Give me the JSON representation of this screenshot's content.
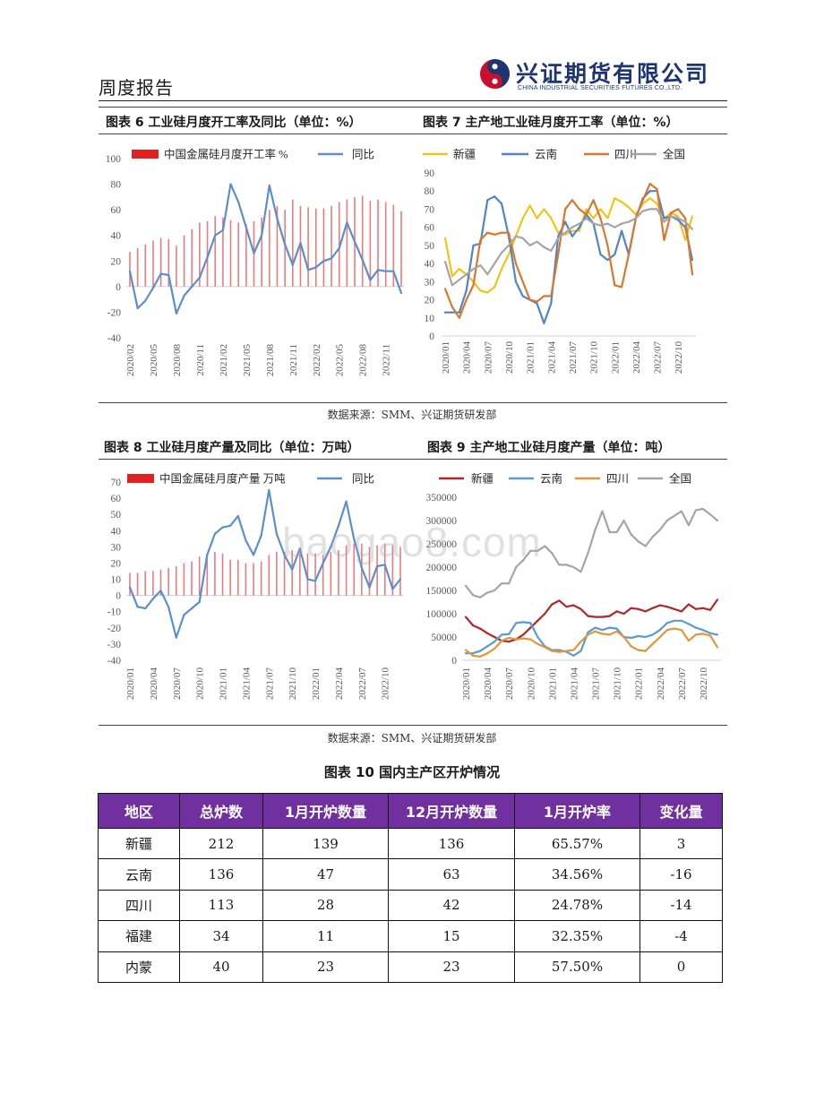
{
  "header": {
    "report_title": "周度报告",
    "company_cn": "兴证期货有限公司",
    "company_en": "CHINA INDUSTRIAL SECURITIES FUTURES CO.,LTD."
  },
  "source_note": "数据来源：SMM、兴证期货研发部",
  "watermark": "baogao8.com",
  "chart_data": [
    {
      "type": "bar",
      "title": "图表 6 工业硅月度开工率及同比（单位：%）",
      "ylim": [
        -40,
        100
      ],
      "y_ticks": [
        100,
        80,
        60,
        40,
        20,
        0,
        -20,
        -40
      ],
      "x": [
        "2020/02",
        "2020/03",
        "2020/04",
        "2020/05",
        "2020/06",
        "2020/07",
        "2020/08",
        "2020/09",
        "2020/10",
        "2020/11",
        "2020/12",
        "2021/01",
        "2021/02",
        "2021/03",
        "2021/04",
        "2021/05",
        "2021/06",
        "2021/07",
        "2021/08",
        "2021/09",
        "2021/10",
        "2021/11",
        "2021/12",
        "2022/01",
        "2022/02",
        "2022/03",
        "2022/04",
        "2022/05",
        "2022/06",
        "2022/07",
        "2022/08",
        "2022/09",
        "2022/10",
        "2022/11",
        "2022/12",
        "2023/01"
      ],
      "x_tick_labels": [
        "2020/02",
        "2020/05",
        "2020/08",
        "2020/11",
        "2021/02",
        "2021/05",
        "2021/08",
        "2021/11",
        "2022/02",
        "2022/05",
        "2022/08",
        "2022/11"
      ],
      "series": [
        {
          "name": "中国金属硅月度开工率 %",
          "kind": "bar",
          "color": "#E87C7C",
          "legend_color": "#E32020",
          "values": [
            27,
            30,
            33,
            36,
            38,
            37,
            32,
            40,
            45,
            50,
            51,
            55,
            54,
            52,
            50,
            49,
            51,
            54,
            60,
            63,
            60,
            68,
            63,
            62,
            61,
            61,
            63,
            66,
            68,
            70,
            71,
            67,
            68,
            66,
            64,
            59
          ]
        },
        {
          "name": "同比",
          "kind": "line",
          "color": "#5B8FCB",
          "values": [
            12,
            -17,
            -11,
            -1,
            10,
            9,
            -21,
            -7,
            0,
            7,
            23,
            40,
            44,
            80,
            66,
            46,
            26,
            40,
            79,
            53,
            33,
            17,
            34,
            13,
            15,
            20,
            22,
            30,
            50,
            35,
            21,
            5,
            13,
            12,
            12,
            -5
          ]
        }
      ]
    },
    {
      "type": "line",
      "title": "图表 7 主产地工业硅月度开工率（单位：%）",
      "ylim": [
        0,
        90
      ],
      "y_ticks": [
        90,
        80,
        70,
        60,
        50,
        40,
        30,
        20,
        10,
        0
      ],
      "x": [
        "2020/01",
        "2020/02",
        "2020/03",
        "2020/04",
        "2020/05",
        "2020/06",
        "2020/07",
        "2020/08",
        "2020/09",
        "2020/10",
        "2020/11",
        "2020/12",
        "2021/01",
        "2021/02",
        "2021/03",
        "2021/04",
        "2021/05",
        "2021/06",
        "2021/07",
        "2021/08",
        "2021/09",
        "2021/10",
        "2021/11",
        "2021/12",
        "2022/01",
        "2022/02",
        "2022/03",
        "2022/04",
        "2022/05",
        "2022/06",
        "2022/07",
        "2022/08",
        "2022/09",
        "2022/10",
        "2022/11",
        "2022/12"
      ],
      "x_tick_labels": [
        "2020/01",
        "2020/04",
        "2020/07",
        "2020/10",
        "2021/01",
        "2021/04",
        "2021/07",
        "2021/10",
        "2022/01",
        "2022/04",
        "2022/07",
        "2022/10"
      ],
      "series": [
        {
          "name": "新疆",
          "kind": "line",
          "color": "#F0C419",
          "values": [
            54,
            33,
            37,
            34,
            30,
            25,
            24,
            27,
            37,
            45,
            55,
            65,
            72,
            65,
            70,
            65,
            57,
            56,
            58,
            58,
            70,
            65,
            70,
            65,
            76,
            74,
            71,
            67,
            73,
            76,
            73,
            65,
            68,
            66,
            53,
            66
          ]
        },
        {
          "name": "云南",
          "kind": "line",
          "color": "#4F86C6",
          "values": [
            13,
            13,
            13,
            25,
            50,
            51,
            75,
            77,
            73,
            55,
            30,
            22,
            20,
            18,
            7,
            18,
            55,
            63,
            55,
            60,
            67,
            62,
            45,
            42,
            45,
            58,
            45,
            65,
            76,
            80,
            80,
            65,
            66,
            64,
            60,
            42
          ]
        },
        {
          "name": "四川",
          "kind": "line",
          "color": "#D9782D",
          "values": [
            26,
            16,
            10,
            20,
            28,
            53,
            57,
            56,
            57,
            57,
            40,
            30,
            20,
            19,
            22,
            22,
            45,
            70,
            75,
            70,
            67,
            75,
            65,
            50,
            28,
            27,
            45,
            65,
            75,
            84,
            81,
            53,
            68,
            70,
            65,
            34
          ]
        },
        {
          "name": "全国",
          "kind": "line",
          "color": "#A5A5A5",
          "values": [
            41,
            28,
            31,
            34,
            37,
            39,
            34,
            40,
            46,
            50,
            55,
            54,
            50,
            52,
            49,
            47,
            54,
            57,
            60,
            62,
            65,
            62,
            61,
            62,
            60,
            62,
            63,
            65,
            69,
            70,
            70,
            63,
            66,
            65,
            63,
            59
          ]
        }
      ]
    },
    {
      "type": "bar",
      "title": "图表 8 工业硅月度产量及同比（单位：万吨）",
      "ylim": [
        -40,
        70
      ],
      "y_ticks": [
        70,
        60,
        50,
        40,
        30,
        20,
        10,
        0,
        -10,
        -20,
        -30,
        -40
      ],
      "x": [
        "2020/01",
        "2020/02",
        "2020/03",
        "2020/04",
        "2020/05",
        "2020/06",
        "2020/07",
        "2020/08",
        "2020/09",
        "2020/10",
        "2020/11",
        "2020/12",
        "2021/01",
        "2021/02",
        "2021/03",
        "2021/04",
        "2021/05",
        "2021/06",
        "2021/07",
        "2021/08",
        "2021/09",
        "2021/10",
        "2021/11",
        "2021/12",
        "2022/01",
        "2022/02",
        "2022/03",
        "2022/04",
        "2022/05",
        "2022/06",
        "2022/07",
        "2022/08",
        "2022/09",
        "2022/10",
        "2022/11",
        "2022/12"
      ],
      "x_tick_labels": [
        "2020/01",
        "2020/04",
        "2020/07",
        "2020/10",
        "2021/01",
        "2021/04",
        "2021/07",
        "2021/10",
        "2022/01",
        "2022/04",
        "2022/07",
        "2022/10"
      ],
      "series": [
        {
          "name": "中国金属硅月度产量 万吨",
          "kind": "bar",
          "color": "#E87C7C",
          "legend_color": "#E32020",
          "values": [
            14,
            14,
            15,
            15,
            16,
            17,
            18,
            20,
            21,
            24,
            25,
            27,
            26,
            22,
            22,
            20,
            20,
            21,
            25,
            27,
            27,
            28,
            26,
            26,
            26,
            25,
            27,
            28,
            31,
            32,
            32,
            30,
            31,
            32,
            31,
            30
          ]
        },
        {
          "name": "同比",
          "kind": "line",
          "color": "#5B8FCB",
          "values": [
            5,
            -7,
            -8,
            -2,
            3,
            -7,
            -26,
            -12,
            -8,
            -4,
            25,
            38,
            42,
            43,
            49,
            34,
            25,
            37,
            65,
            38,
            25,
            16,
            29,
            10,
            9,
            20,
            30,
            43,
            58,
            35,
            17,
            5,
            18,
            19,
            4,
            10
          ]
        }
      ]
    },
    {
      "type": "line",
      "title": "图表 9 主产地工业硅月度产量（单位：吨）",
      "ylim": [
        0,
        350000
      ],
      "y_ticks": [
        350000,
        300000,
        250000,
        200000,
        150000,
        100000,
        50000,
        0
      ],
      "x": [
        "2020/01",
        "2020/02",
        "2020/03",
        "2020/04",
        "2020/05",
        "2020/06",
        "2020/07",
        "2020/08",
        "2020/09",
        "2020/10",
        "2020/11",
        "2020/12",
        "2021/01",
        "2021/02",
        "2021/03",
        "2021/04",
        "2021/05",
        "2021/06",
        "2021/07",
        "2021/08",
        "2021/09",
        "2021/10",
        "2021/11",
        "2021/12",
        "2022/01",
        "2022/02",
        "2022/03",
        "2022/04",
        "2022/05",
        "2022/06",
        "2022/07",
        "2022/08",
        "2022/09",
        "2022/10",
        "2022/11",
        "2022/12"
      ],
      "x_tick_labels": [
        "2020/01",
        "2020/04",
        "2020/07",
        "2020/10",
        "2021/01",
        "2021/04",
        "2021/07",
        "2021/10",
        "2022/01",
        "2022/04",
        "2022/07",
        "2022/10"
      ],
      "series": [
        {
          "name": "新疆",
          "kind": "line",
          "color": "#B0282A",
          "values": [
            93000,
            75000,
            68000,
            58000,
            50000,
            42000,
            40000,
            45000,
            55000,
            70000,
            85000,
            100000,
            120000,
            128000,
            115000,
            118000,
            110000,
            95000,
            93000,
            93000,
            95000,
            105000,
            100000,
            112000,
            110000,
            105000,
            112000,
            118000,
            115000,
            110000,
            105000,
            120000,
            110000,
            112000,
            108000,
            130000
          ]
        },
        {
          "name": "云南",
          "kind": "line",
          "color": "#5B9BD5",
          "values": [
            15000,
            15000,
            20000,
            30000,
            40000,
            55000,
            56000,
            80000,
            82000,
            80000,
            50000,
            30000,
            22000,
            22000,
            18000,
            10000,
            20000,
            60000,
            70000,
            65000,
            70000,
            68000,
            50000,
            48000,
            52000,
            50000,
            55000,
            65000,
            80000,
            85000,
            85000,
            78000,
            70000,
            65000,
            58000,
            55000
          ]
        },
        {
          "name": "四川",
          "kind": "line",
          "color": "#E3963A",
          "values": [
            22000,
            10000,
            8000,
            15000,
            25000,
            42000,
            48000,
            45000,
            47000,
            45000,
            35000,
            28000,
            20000,
            18000,
            20000,
            22000,
            40000,
            55000,
            62000,
            57000,
            55000,
            62000,
            50000,
            30000,
            22000,
            20000,
            35000,
            50000,
            65000,
            68000,
            65000,
            42000,
            55000,
            57000,
            53000,
            28000
          ]
        },
        {
          "name": "全国",
          "kind": "line",
          "color": "#A5A5A5",
          "values": [
            160000,
            140000,
            135000,
            145000,
            150000,
            165000,
            165000,
            200000,
            215000,
            235000,
            235000,
            245000,
            230000,
            205000,
            205000,
            200000,
            190000,
            230000,
            280000,
            320000,
            275000,
            275000,
            300000,
            270000,
            255000,
            245000,
            265000,
            280000,
            300000,
            310000,
            320000,
            290000,
            322000,
            325000,
            313000,
            300000
          ]
        }
      ]
    }
  ],
  "table": {
    "title": "图表 10 国内主产区开炉情况",
    "header_color": "#7030A0",
    "headers": [
      "地区",
      "总炉数",
      "1月开炉数量",
      "12月开炉数量",
      "1月开炉率",
      "变化量"
    ],
    "rows": [
      [
        "新疆",
        "212",
        "139",
        "136",
        "65.57%",
        "3"
      ],
      [
        "云南",
        "136",
        "47",
        "63",
        "34.56%",
        "-16"
      ],
      [
        "四川",
        "113",
        "28",
        "42",
        "24.78%",
        "-14"
      ],
      [
        "福建",
        "34",
        "11",
        "15",
        "32.35%",
        "-4"
      ],
      [
        "内蒙",
        "40",
        "23",
        "23",
        "57.50%",
        "0"
      ]
    ]
  }
}
